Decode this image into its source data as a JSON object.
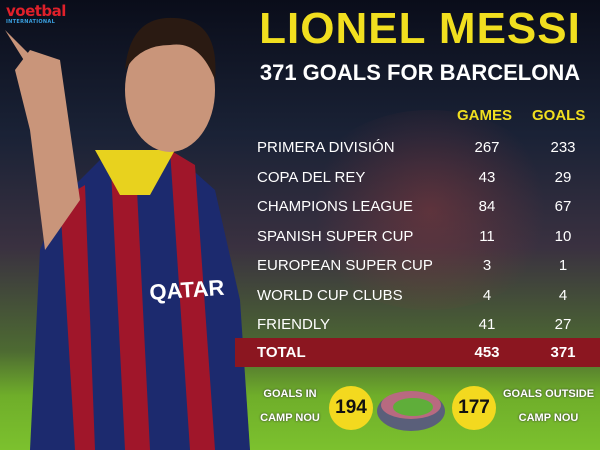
{
  "brand": {
    "name": "voetbal",
    "sub": "INTERNATIONAL"
  },
  "title": "LIONEL MESSI",
  "subtitle": "371 GOALS FOR BARCELONA",
  "columns": {
    "games": "GAMES",
    "goals": "GOALS"
  },
  "rows": [
    {
      "competition": "PRIMERA DIVISIÓN",
      "games": "267",
      "goals": "233"
    },
    {
      "competition": "COPA DEL REY",
      "games": "43",
      "goals": "29"
    },
    {
      "competition": "CHAMPIONS LEAGUE",
      "games": "84",
      "goals": "67"
    },
    {
      "competition": "SPANISH SUPER CUP",
      "games": "11",
      "goals": "10"
    },
    {
      "competition": "EUROPEAN SUPER CUP",
      "games": "3",
      "goals": "1"
    },
    {
      "competition": "WORLD CUP CLUBS",
      "games": "4",
      "goals": "4"
    },
    {
      "competition": "FRIENDLY",
      "games": "41",
      "goals": "27"
    }
  ],
  "total": {
    "label": "TOTAL",
    "games": "453",
    "goals": "371"
  },
  "bottom": {
    "in_line1": "GOALS IN",
    "in_line2": "CAMP NOU",
    "in_value": "194",
    "out_value": "177",
    "out_line1": "GOALS OUTSIDE",
    "out_line2": "CAMP NOU"
  },
  "colors": {
    "yellow": "#f1df1f",
    "total_band": "#8b1620",
    "brand_red": "#e0202a"
  }
}
